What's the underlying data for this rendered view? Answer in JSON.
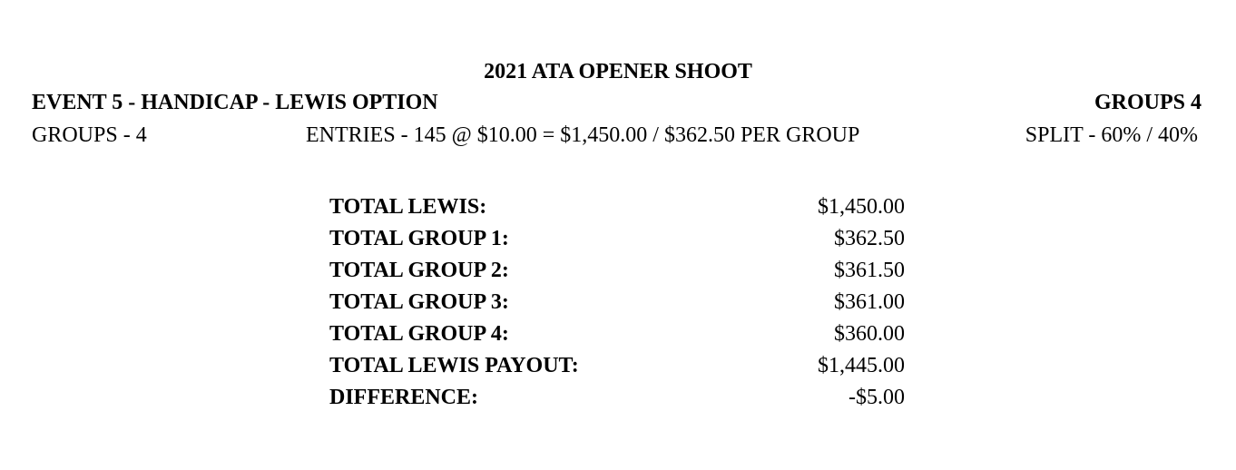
{
  "header": {
    "title": "2021 ATA OPENER SHOOT",
    "event": "EVENT 5 - HANDICAP - LEWIS OPTION",
    "groups_badge": "GROUPS 4",
    "groups_line": "GROUPS - 4",
    "entries_line": "ENTRIES - 145 @ $10.00 = $1,450.00 / $362.50 PER GROUP",
    "split_line": "SPLIT - 60% / 40%"
  },
  "totals": {
    "rows": [
      {
        "label": "TOTAL LEWIS:",
        "value": "$1,450.00"
      },
      {
        "label": "TOTAL GROUP 1:",
        "value": "$362.50"
      },
      {
        "label": "TOTAL GROUP 2:",
        "value": "$361.50"
      },
      {
        "label": "TOTAL GROUP 3:",
        "value": "$361.00"
      },
      {
        "label": "TOTAL GROUP 4:",
        "value": "$360.00"
      },
      {
        "label": "TOTAL LEWIS PAYOUT:",
        "value": "$1,445.00"
      },
      {
        "label": "DIFFERENCE:",
        "value": "-$5.00"
      }
    ]
  }
}
